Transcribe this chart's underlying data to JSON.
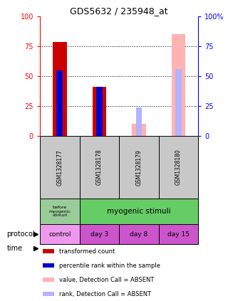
{
  "title": "GDS5632 / 235948_at",
  "samples": [
    "GSM1328177",
    "GSM1328178",
    "GSM1328179",
    "GSM1328180"
  ],
  "bar_width": 0.35,
  "transformed_counts": [
    79,
    41,
    null,
    null
  ],
  "percentile_ranks": [
    55,
    41,
    null,
    null
  ],
  "absent_values": [
    null,
    null,
    10,
    85
  ],
  "absent_ranks": [
    null,
    null,
    24,
    56
  ],
  "ylim": [
    0,
    100
  ],
  "yticks": [
    0,
    25,
    50,
    75,
    100
  ],
  "colors": {
    "transformed": "#cc0000",
    "percentile": "#0000cc",
    "absent_value": "#ffb3b3",
    "absent_rank": "#b3b3ff",
    "sample_box": "#c8c8c8",
    "protocol_green": "#66cc66",
    "protocol_lightgreen": "#99cc99",
    "time_pink": "#cc55cc",
    "time_lightpink": "#ee99ee",
    "white": "#ffffff"
  },
  "protocol_labels": [
    "before\nmyogenic\nstimuli",
    "myogenic stimuli"
  ],
  "time_labels": [
    "control",
    "day 3",
    "day 8",
    "day 15"
  ],
  "legend_items": [
    {
      "color": "#cc0000",
      "label": "transformed count"
    },
    {
      "color": "#0000cc",
      "label": "percentile rank within the sample"
    },
    {
      "color": "#ffb3b3",
      "label": "value, Detection Call = ABSENT"
    },
    {
      "color": "#b3b3ff",
      "label": "rank, Detection Call = ABSENT"
    }
  ]
}
